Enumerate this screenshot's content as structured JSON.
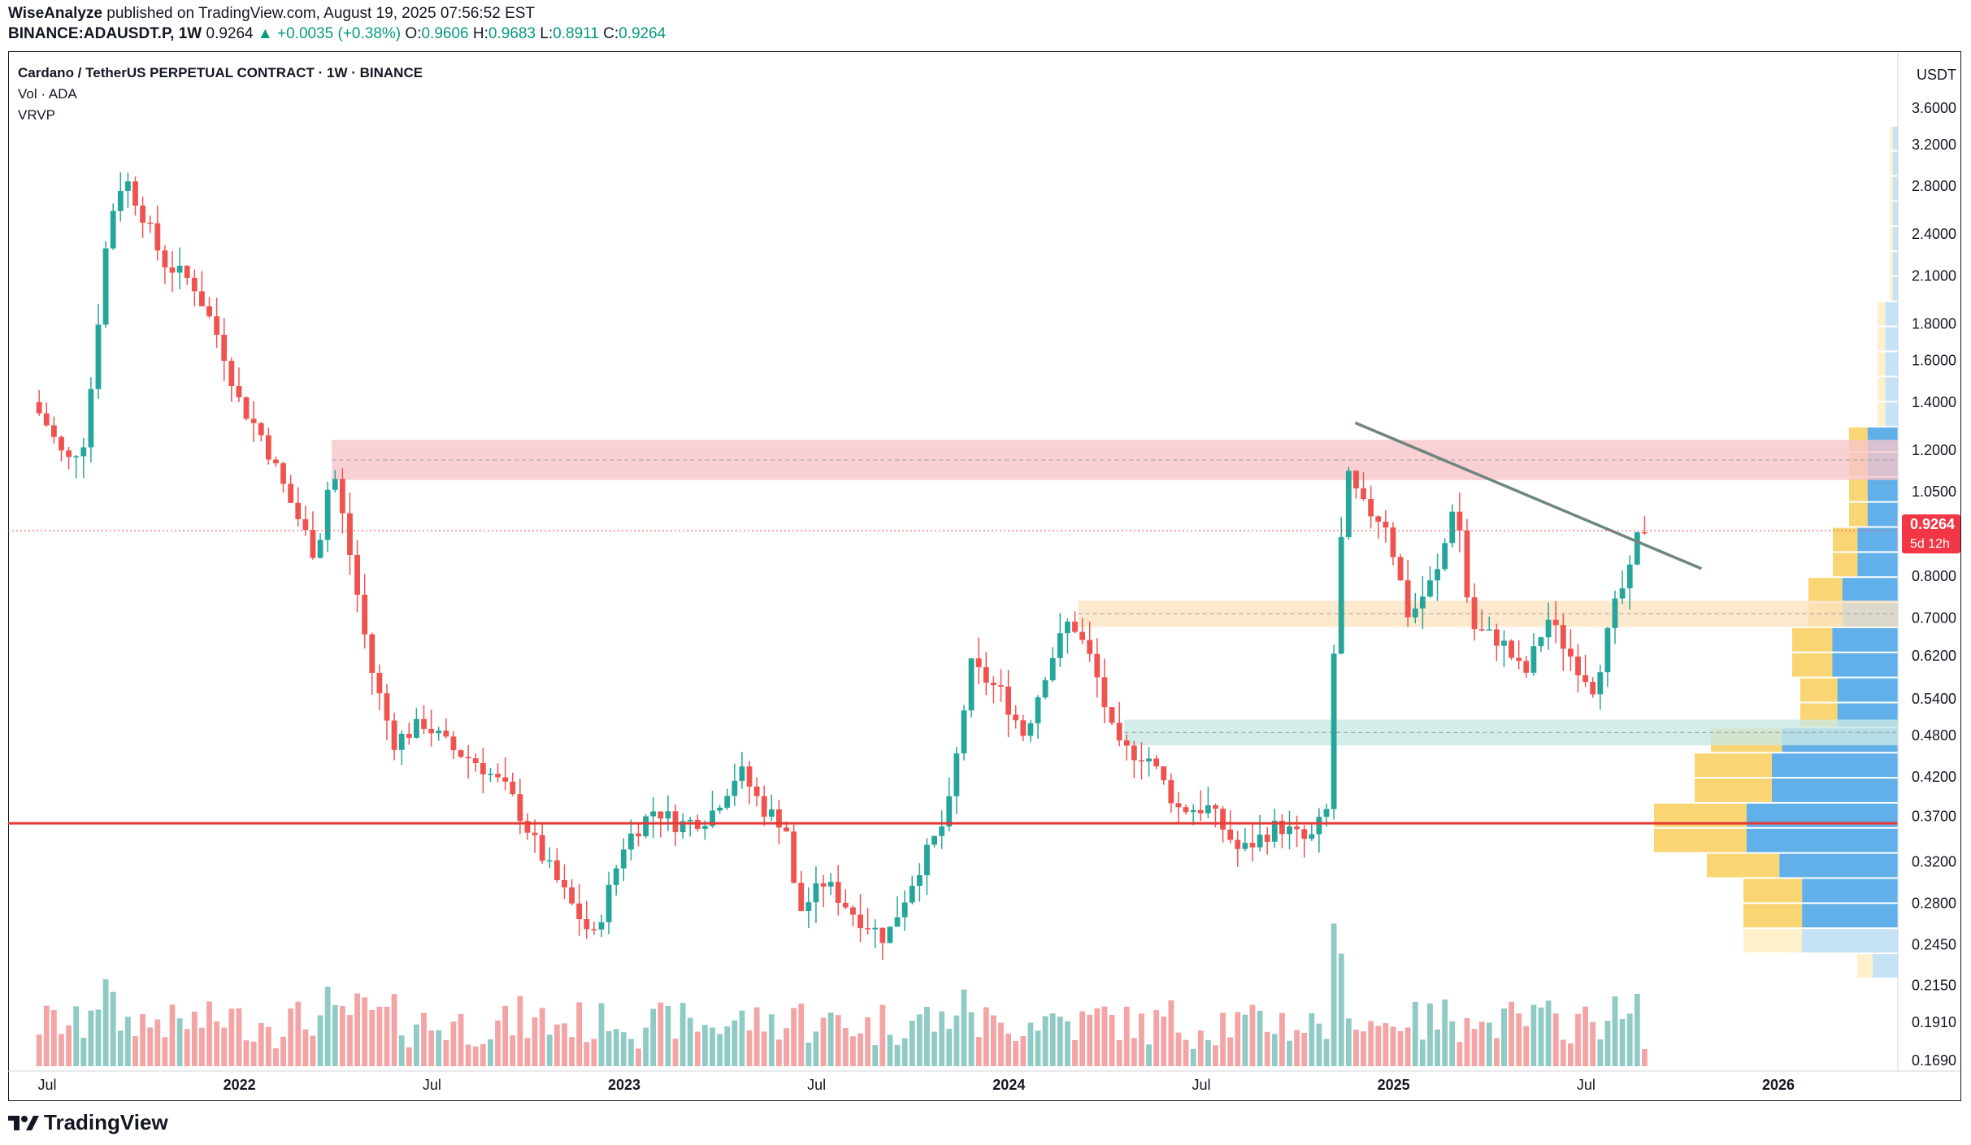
{
  "header": {
    "author": "WiseAnalyze",
    "published_text": "published on TradingView.com, August 19, 2025 07:56:52 EST",
    "symbol": "BINANCE:ADAUSDT.P, 1W",
    "last_price": "0.9264",
    "arrow": "▲",
    "change": "+0.0035 (+0.38%)",
    "o_label": "O:",
    "o_value": "0.9606",
    "h_label": "H:",
    "h_value": "0.9683",
    "l_label": "L:",
    "l_value": "0.8911",
    "c_label": "C:",
    "c_value": "0.9264"
  },
  "legend": {
    "title": "Cardano / TetherUS PERPETUAL CONTRACT · 1W · BINANCE",
    "volume": "Vol · ADA",
    "vrvp": "VRVP"
  },
  "footer": {
    "brand": "TradingView",
    "logo_icon": "tradingview-logo-icon"
  },
  "colors": {
    "up": "#26a69a",
    "down": "#ef5350",
    "vol_up": "#8fcbc4",
    "vol_down": "#f3a4a5",
    "resistance_zone": "#f8c5c9",
    "support_zone_orange": "#fbe3c2",
    "support_zone_green": "#c9e9e3",
    "horizontal_line": "#e53935",
    "trendline": "#6f8580",
    "vp_blue": "#5aace9",
    "vp_yellow": "#f9d36b",
    "price_label_bg": "#f23645"
  },
  "chart_data": {
    "type": "candlestick",
    "title": "Cardano / TetherUS PERPETUAL CONTRACT · 1W · BINANCE",
    "y_scale": "log",
    "y_axis_unit": "USDT",
    "y_ticks": [
      "3.6000",
      "3.2000",
      "2.8000",
      "2.4000",
      "2.1000",
      "1.8000",
      "1.6000",
      "1.4000",
      "1.2000",
      "1.0500",
      "0.8000",
      "0.7000",
      "0.6200",
      "0.5400",
      "0.4800",
      "0.4200",
      "0.3700",
      "0.3200",
      "0.2800",
      "0.2450",
      "0.2150",
      "0.1910",
      "0.1690"
    ],
    "x_ticks": [
      "Jul",
      "2022",
      "Jul",
      "2023",
      "Jul",
      "2024",
      "Jul",
      "2025",
      "Jul",
      "2026"
    ],
    "x_tick_years": [
      2021.5,
      2022.0,
      2022.5,
      2023.0,
      2023.5,
      2024.0,
      2024.5,
      2025.0,
      2025.5,
      2026.0
    ],
    "current_price": "0.9264",
    "countdown": "5d 12h",
    "key_path": [
      [
        2021.46,
        1.4
      ],
      [
        2021.5,
        1.3
      ],
      [
        2021.55,
        1.15
      ],
      [
        2021.6,
        1.25
      ],
      [
        2021.66,
        2.5
      ],
      [
        2021.7,
        2.9
      ],
      [
        2021.75,
        2.55
      ],
      [
        2021.8,
        2.2
      ],
      [
        2021.88,
        2.05
      ],
      [
        2021.95,
        1.7
      ],
      [
        2022.0,
        1.4
      ],
      [
        2022.06,
        1.25
      ],
      [
        2022.12,
        1.05
      ],
      [
        2022.2,
        0.85
      ],
      [
        2022.24,
        1.15
      ],
      [
        2022.28,
        0.9
      ],
      [
        2022.34,
        0.6
      ],
      [
        2022.4,
        0.47
      ],
      [
        2022.48,
        0.5
      ],
      [
        2022.55,
        0.46
      ],
      [
        2022.62,
        0.44
      ],
      [
        2022.7,
        0.4
      ],
      [
        2022.78,
        0.33
      ],
      [
        2022.86,
        0.28
      ],
      [
        2022.92,
        0.25
      ],
      [
        2023.0,
        0.34
      ],
      [
        2023.08,
        0.38
      ],
      [
        2023.14,
        0.36
      ],
      [
        2023.22,
        0.37
      ],
      [
        2023.3,
        0.43
      ],
      [
        2023.36,
        0.38
      ],
      [
        2023.42,
        0.36
      ],
      [
        2023.45,
        0.27
      ],
      [
        2023.52,
        0.3
      ],
      [
        2023.6,
        0.27
      ],
      [
        2023.68,
        0.25
      ],
      [
        2023.76,
        0.31
      ],
      [
        2023.84,
        0.37
      ],
      [
        2023.9,
        0.6
      ],
      [
        2023.98,
        0.55
      ],
      [
        2024.04,
        0.48
      ],
      [
        2024.1,
        0.6
      ],
      [
        2024.16,
        0.7
      ],
      [
        2024.22,
        0.6
      ],
      [
        2024.28,
        0.46
      ],
      [
        2024.36,
        0.45
      ],
      [
        2024.44,
        0.38
      ],
      [
        2024.52,
        0.38
      ],
      [
        2024.6,
        0.33
      ],
      [
        2024.7,
        0.36
      ],
      [
        2024.78,
        0.34
      ],
      [
        2024.83,
        0.38
      ],
      [
        2024.85,
        0.75
      ],
      [
        2024.88,
        1.1
      ],
      [
        2024.92,
        1.0
      ],
      [
        2024.98,
        0.95
      ],
      [
        2025.04,
        0.7
      ],
      [
        2025.12,
        0.82
      ],
      [
        2025.16,
        1.05
      ],
      [
        2025.2,
        0.68
      ],
      [
        2025.28,
        0.65
      ],
      [
        2025.34,
        0.58
      ],
      [
        2025.4,
        0.7
      ],
      [
        2025.46,
        0.62
      ],
      [
        2025.52,
        0.56
      ],
      [
        2025.58,
        0.74
      ],
      [
        2025.62,
        0.82
      ],
      [
        2025.64,
        0.95
      ],
      [
        2025.66,
        0.9264
      ]
    ],
    "zones": [
      {
        "name": "resistance",
        "from_year": 2022.24,
        "low": 1.09,
        "high": 1.24
      },
      {
        "name": "support-orange",
        "from_year": 2024.18,
        "low": 0.68,
        "high": 0.74
      },
      {
        "name": "support-green",
        "from_year": 2024.3,
        "low": 0.465,
        "high": 0.505
      }
    ],
    "horizontal_line": {
      "price": 0.362
    },
    "trendline": {
      "from": [
        2024.9,
        1.31
      ],
      "to": [
        2025.8,
        0.82
      ]
    }
  }
}
